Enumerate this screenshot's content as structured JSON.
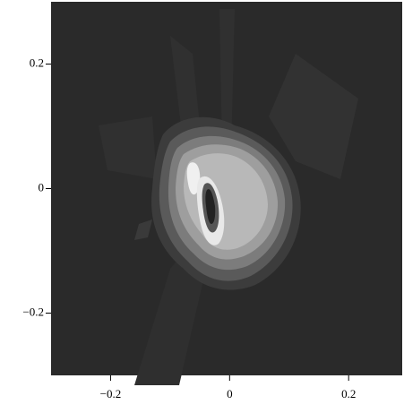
{
  "chart_data": {
    "type": "contour",
    "xlim": [
      -0.3,
      0.29
    ],
    "ylim": [
      -0.3,
      0.3
    ],
    "xticks": [
      {
        "value": -0.2,
        "label": "−0.2"
      },
      0,
      0.2
    ],
    "yticks": [
      {
        "value": -0.2,
        "label": "−0.2"
      },
      0,
      0.2
    ],
    "background": "#2a2a2a"
  }
}
